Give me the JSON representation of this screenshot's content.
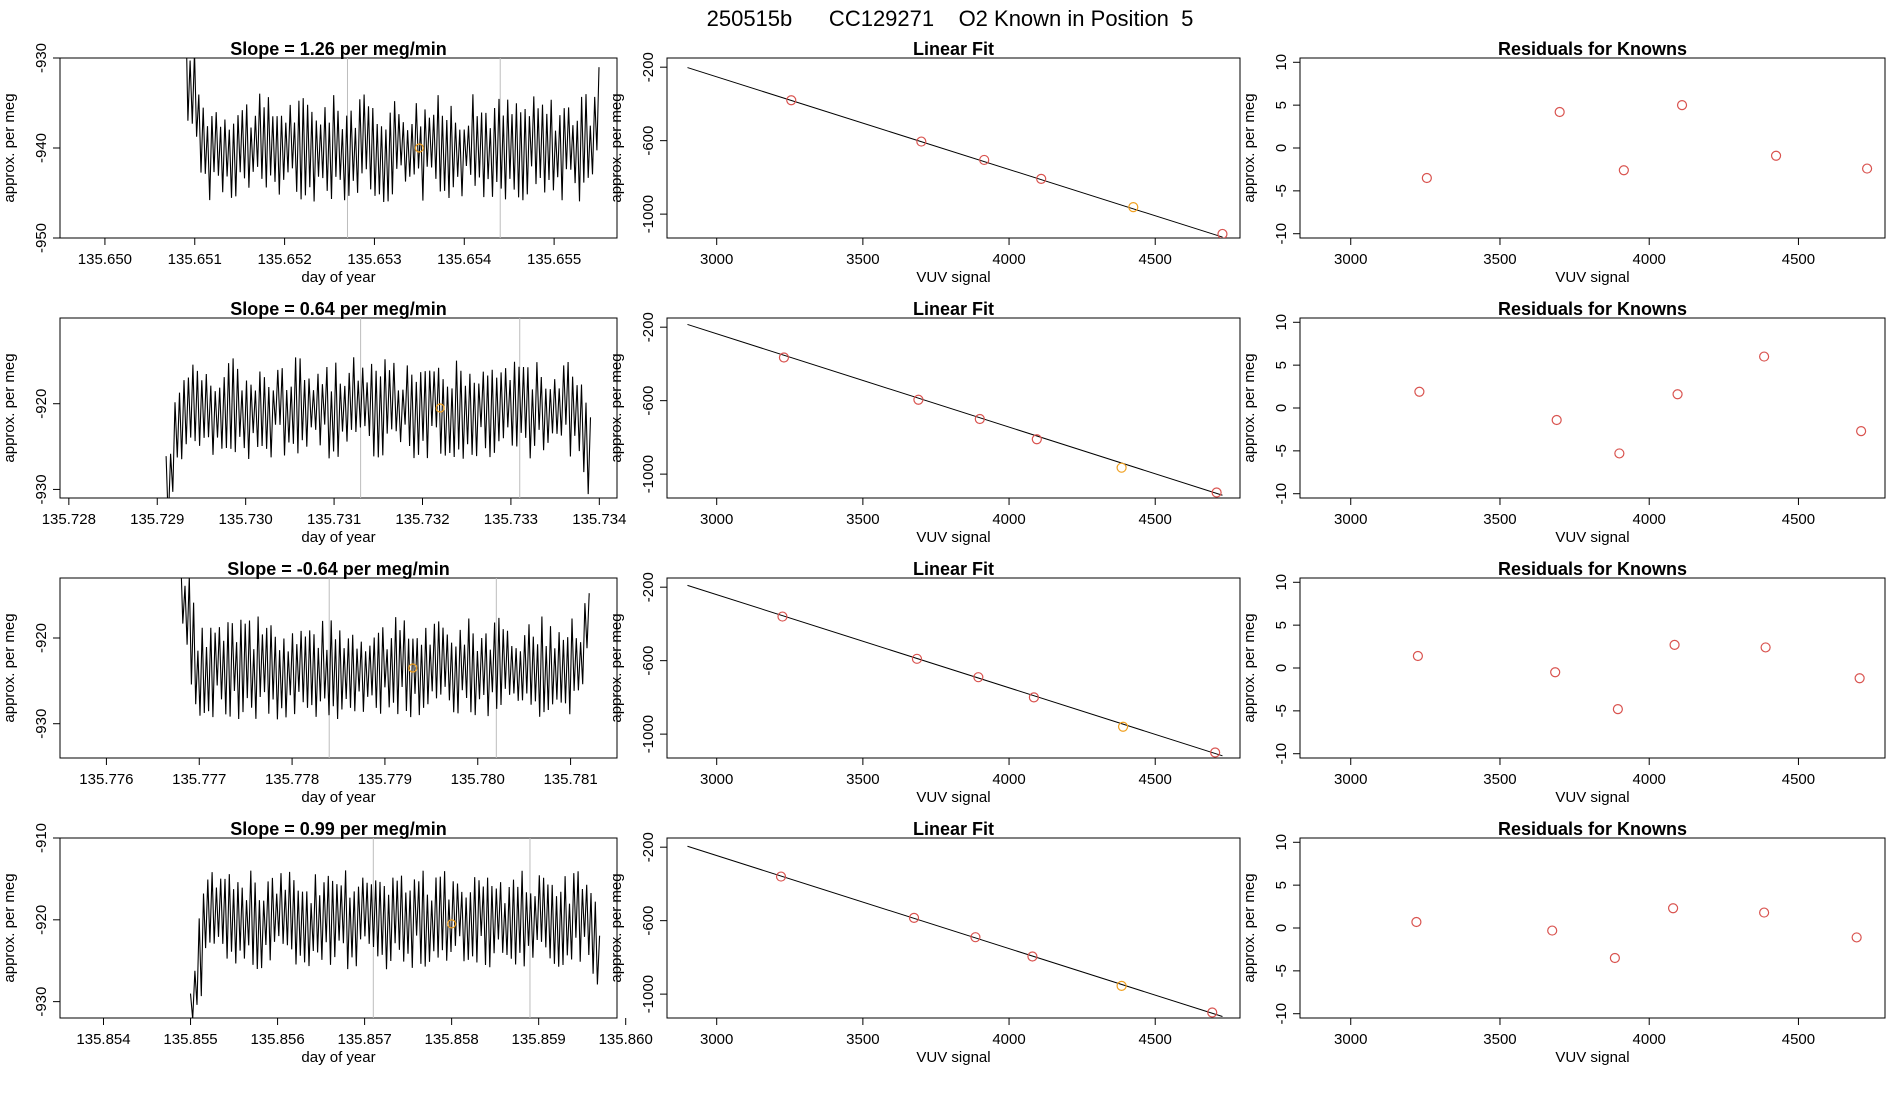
{
  "figure": {
    "title": "250515b      CC129271    O2 Known in Position  5",
    "colors": {
      "line": "#000000",
      "point": "#d9534f",
      "highlight": "#f0a020",
      "marker": "#bdbdbd"
    }
  },
  "chart_data": [
    {
      "type": "line",
      "row": 0,
      "col": 0,
      "title": "Slope =  1.26  per meg/min",
      "xlabel": "day of year",
      "ylabel": "approx. per meg",
      "xlim": [
        135.6495,
        135.6557
      ],
      "ylim": [
        -950,
        -930
      ],
      "xticks": [
        135.65,
        135.651,
        135.652,
        135.653,
        135.654,
        135.655
      ],
      "xtick_labels": [
        "135.650",
        "135.651",
        "135.652",
        "135.653",
        "135.654",
        "135.655"
      ],
      "yticks": [
        -950,
        -940,
        -930
      ],
      "ytick_labels": [
        "-950",
        "-940",
        "-930"
      ],
      "trace": {
        "x_start": 135.6509,
        "x_end": 135.6555,
        "level": -940,
        "amplitude": 5.5,
        "start_offset": 10
      },
      "vlines": [
        135.6527,
        135.6544
      ],
      "highlight": {
        "x": 135.6535,
        "y": -940
      }
    },
    {
      "type": "scatter",
      "row": 0,
      "col": 1,
      "title": "Linear Fit",
      "xlabel": "VUV signal",
      "ylabel": "approx. per meg",
      "xlim": [
        2830,
        4790
      ],
      "ylim": [
        -1130,
        -150
      ],
      "xticks": [
        3000,
        3500,
        4000,
        4500
      ],
      "xtick_labels": [
        "3000",
        "3500",
        "4000",
        "4500"
      ],
      "yticks": [
        -1000,
        -600,
        -200
      ],
      "ytick_labels": [
        "-1000",
        "-600",
        "-200"
      ],
      "fit_line": {
        "x": [
          2900,
          4730
        ],
        "y": [
          -202,
          -1125
        ]
      },
      "x": [
        3255,
        3700,
        3915,
        4110,
        4425,
        4730
      ],
      "y": [
        -380,
        -605,
        -705,
        -808,
        -962,
        -1108
      ],
      "highlight_index": 4
    },
    {
      "type": "scatter",
      "row": 0,
      "col": 2,
      "title": "Residuals for Knowns",
      "xlabel": "VUV signal",
      "ylabel": "approx. per meg",
      "xlim": [
        2830,
        4790
      ],
      "ylim": [
        -10.5,
        10.5
      ],
      "xticks": [
        3000,
        3500,
        4000,
        4500
      ],
      "xtick_labels": [
        "3000",
        "3500",
        "4000",
        "4500"
      ],
      "yticks": [
        -10,
        -5,
        0,
        5,
        10
      ],
      "ytick_labels": [
        "-10",
        "-5",
        "0",
        "5",
        "10"
      ],
      "x": [
        3255,
        3700,
        3915,
        4110,
        4425,
        4730
      ],
      "y": [
        -3.5,
        4.2,
        -2.6,
        5.0,
        -0.9,
        -2.4
      ]
    },
    {
      "type": "line",
      "row": 1,
      "col": 0,
      "title": "Slope =  0.64  per meg/min",
      "xlabel": "day of year",
      "ylabel": "approx. per meg",
      "xlim": [
        135.7279,
        135.7342
      ],
      "ylim": [
        -931,
        -910
      ],
      "xticks": [
        135.728,
        135.729,
        135.73,
        135.731,
        135.732,
        135.733,
        135.734
      ],
      "xtick_labels": [
        "135.728",
        "135.729",
        "135.730",
        "135.731",
        "135.732",
        "135.733",
        "135.734"
      ],
      "yticks": [
        -930,
        -920
      ],
      "ytick_labels": [
        "-930",
        "-920"
      ],
      "trace": {
        "x_start": 135.7291,
        "x_end": 135.7339,
        "level": -920.5,
        "amplitude": 5.5,
        "start_offset": -10
      },
      "vlines": [
        135.7313,
        135.7331
      ],
      "highlight": {
        "x": 135.7322,
        "y": -920.5
      }
    },
    {
      "type": "scatter",
      "row": 1,
      "col": 1,
      "title": "Linear Fit",
      "xlabel": "VUV signal",
      "ylabel": "approx. per meg",
      "xlim": [
        2830,
        4790
      ],
      "ylim": [
        -1130,
        -150
      ],
      "xticks": [
        3000,
        3500,
        4000,
        4500
      ],
      "xtick_labels": [
        "3000",
        "3500",
        "4000",
        "4500"
      ],
      "yticks": [
        -1000,
        -600,
        -200
      ],
      "ytick_labels": [
        "-1000",
        "-600",
        "-200"
      ],
      "fit_line": {
        "x": [
          2900,
          4730
        ],
        "y": [
          -185,
          -1115
        ]
      },
      "x": [
        3230,
        3690,
        3900,
        4095,
        4385,
        4710
      ],
      "y": [
        -365,
        -595,
        -700,
        -810,
        -965,
        -1100
      ],
      "highlight_index": 4
    },
    {
      "type": "scatter",
      "row": 1,
      "col": 2,
      "title": "Residuals for Knowns",
      "xlabel": "VUV signal",
      "ylabel": "approx. per meg",
      "xlim": [
        2830,
        4790
      ],
      "ylim": [
        -10.5,
        10.5
      ],
      "xticks": [
        3000,
        3500,
        4000,
        4500
      ],
      "xtick_labels": [
        "3000",
        "3500",
        "4000",
        "4500"
      ],
      "yticks": [
        -10,
        -5,
        0,
        5,
        10
      ],
      "ytick_labels": [
        "-10",
        "-5",
        "0",
        "5",
        "10"
      ],
      "x": [
        3230,
        3690,
        3900,
        4095,
        4385,
        4710
      ],
      "y": [
        1.9,
        -1.4,
        -5.3,
        1.6,
        6.0,
        -2.7
      ]
    },
    {
      "type": "line",
      "row": 2,
      "col": 0,
      "title": "Slope =  -0.64  per meg/min",
      "xlabel": "day of year",
      "ylabel": "approx. per meg",
      "xlim": [
        135.7755,
        135.7815
      ],
      "ylim": [
        -934,
        -913
      ],
      "xticks": [
        135.776,
        135.777,
        135.778,
        135.779,
        135.78,
        135.781
      ],
      "xtick_labels": [
        "135.776",
        "135.777",
        "135.778",
        "135.779",
        "135.780",
        "135.781"
      ],
      "yticks": [
        -930,
        -920
      ],
      "ytick_labels": [
        "-930",
        "-920"
      ],
      "trace": {
        "x_start": 135.7768,
        "x_end": 135.7812,
        "level": -923.5,
        "amplitude": 5.5,
        "start_offset": 10
      },
      "vlines": [
        135.7784,
        135.7802
      ],
      "highlight": {
        "x": 135.7793,
        "y": -923.5
      }
    },
    {
      "type": "scatter",
      "row": 2,
      "col": 1,
      "title": "Linear Fit",
      "xlabel": "VUV signal",
      "ylabel": "approx. per meg",
      "xlim": [
        2830,
        4790
      ],
      "ylim": [
        -1130,
        -150
      ],
      "xticks": [
        3000,
        3500,
        4000,
        4500
      ],
      "xtick_labels": [
        "3000",
        "3500",
        "4000",
        "4500"
      ],
      "yticks": [
        -1000,
        -600,
        -200
      ],
      "ytick_labels": [
        "-1000",
        "-600",
        "-200"
      ],
      "fit_line": {
        "x": [
          2900,
          4730
        ],
        "y": [
          -190,
          -1118
        ]
      },
      "x": [
        3225,
        3685,
        3895,
        4085,
        4390,
        4705
      ],
      "y": [
        -360,
        -590,
        -690,
        -800,
        -960,
        -1100
      ],
      "highlight_index": 4
    },
    {
      "type": "scatter",
      "row": 2,
      "col": 2,
      "title": "Residuals for Knowns",
      "xlabel": "VUV signal",
      "ylabel": "approx. per meg",
      "xlim": [
        2830,
        4790
      ],
      "ylim": [
        -10.5,
        10.5
      ],
      "xticks": [
        3000,
        3500,
        4000,
        4500
      ],
      "xtick_labels": [
        "3000",
        "3500",
        "4000",
        "4500"
      ],
      "yticks": [
        -10,
        -5,
        0,
        5,
        10
      ],
      "ytick_labels": [
        "-10",
        "-5",
        "0",
        "5",
        "10"
      ],
      "x": [
        3225,
        3685,
        3895,
        4085,
        4390,
        4705
      ],
      "y": [
        1.4,
        -0.5,
        -4.8,
        2.7,
        2.4,
        -1.2
      ]
    },
    {
      "type": "line",
      "row": 3,
      "col": 0,
      "title": "Slope =  0.99  per meg/min",
      "xlabel": "day of year",
      "ylabel": "approx. per meg",
      "xlim": [
        135.8535,
        135.8599
      ],
      "ylim": [
        -932,
        -910
      ],
      "xticks": [
        135.854,
        135.855,
        135.856,
        135.857,
        135.858,
        135.859,
        135.86
      ],
      "xtick_labels": [
        "135.854",
        "135.855",
        "135.856",
        "135.857",
        "135.858",
        "135.859",
        "135.860"
      ],
      "yticks": [
        -930,
        -920,
        -910
      ],
      "ytick_labels": [
        "-930",
        "-920",
        "-910"
      ],
      "trace": {
        "x_start": 135.855,
        "x_end": 135.8597,
        "level": -920,
        "amplitude": 5.5,
        "start_offset": -11
      },
      "vlines": [
        135.8571,
        135.8589
      ],
      "highlight": {
        "x": 135.858,
        "y": -920.5
      }
    },
    {
      "type": "scatter",
      "row": 3,
      "col": 1,
      "title": "Linear Fit",
      "xlabel": "VUV signal",
      "ylabel": "approx. per meg",
      "xlim": [
        2830,
        4790
      ],
      "ylim": [
        -1130,
        -150
      ],
      "xticks": [
        3000,
        3500,
        4000,
        4500
      ],
      "xtick_labels": [
        "3000",
        "3500",
        "4000",
        "4500"
      ],
      "yticks": [
        -1000,
        -600,
        -200
      ],
      "ytick_labels": [
        "-1000",
        "-600",
        "-200"
      ],
      "fit_line": {
        "x": [
          2900,
          4730
        ],
        "y": [
          -195,
          -1122
        ]
      },
      "x": [
        3220,
        3675,
        3885,
        4080,
        4385,
        4695
      ],
      "y": [
        -360,
        -585,
        -690,
        -795,
        -955,
        -1100
      ],
      "highlight_index": 4
    },
    {
      "type": "scatter",
      "row": 3,
      "col": 2,
      "title": "Residuals for Knowns",
      "xlabel": "VUV signal",
      "ylabel": "approx. per meg",
      "xlim": [
        2830,
        4790
      ],
      "ylim": [
        -10.5,
        10.5
      ],
      "xticks": [
        3000,
        3500,
        4000,
        4500
      ],
      "xtick_labels": [
        "3000",
        "3500",
        "4000",
        "4500"
      ],
      "yticks": [
        -10,
        -5,
        0,
        5,
        10
      ],
      "ytick_labels": [
        "-10",
        "-5",
        "0",
        "5",
        "10"
      ],
      "x": [
        3220,
        3675,
        3885,
        4080,
        4385,
        4695
      ],
      "y": [
        0.7,
        -0.3,
        -3.5,
        2.3,
        1.8,
        -1.1
      ]
    }
  ]
}
